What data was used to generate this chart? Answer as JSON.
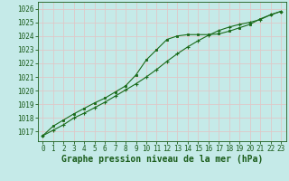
{
  "xlabel": "Graphe pression niveau de la mer (hPa)",
  "xlim": [
    -0.5,
    23.5
  ],
  "ylim": [
    1016.3,
    1026.5
  ],
  "yticks": [
    1017,
    1018,
    1019,
    1020,
    1021,
    1022,
    1023,
    1024,
    1025,
    1026
  ],
  "xticks": [
    0,
    1,
    2,
    3,
    4,
    5,
    6,
    7,
    8,
    9,
    10,
    11,
    12,
    13,
    14,
    15,
    16,
    17,
    18,
    19,
    20,
    21,
    22,
    23
  ],
  "bg_color": "#c5eae8",
  "grid_color": "#dfc8c8",
  "line_color": "#1a6b1a",
  "line1_x": [
    0,
    1,
    2,
    3,
    4,
    5,
    6,
    7,
    8,
    9,
    10,
    11,
    12,
    13,
    14,
    15,
    16,
    17,
    18,
    19,
    20,
    21,
    22,
    23
  ],
  "line1_y": [
    1016.7,
    1017.1,
    1017.5,
    1018.0,
    1018.35,
    1018.75,
    1019.15,
    1019.6,
    1020.05,
    1020.5,
    1021.0,
    1021.55,
    1022.15,
    1022.7,
    1023.2,
    1023.65,
    1024.05,
    1024.4,
    1024.65,
    1024.85,
    1025.0,
    1025.2,
    1025.55,
    1025.8
  ],
  "line2_x": [
    0,
    1,
    2,
    3,
    4,
    5,
    6,
    7,
    8,
    9,
    10,
    11,
    12,
    13,
    14,
    15,
    16,
    17,
    18,
    19,
    20,
    21,
    22,
    23
  ],
  "line2_y": [
    1016.7,
    1017.4,
    1017.85,
    1018.3,
    1018.7,
    1019.1,
    1019.45,
    1019.9,
    1020.35,
    1021.15,
    1022.25,
    1023.0,
    1023.75,
    1024.0,
    1024.1,
    1024.1,
    1024.1,
    1024.15,
    1024.35,
    1024.6,
    1024.85,
    1025.25,
    1025.55,
    1025.8
  ],
  "font_color": "#1a5c1a",
  "xlabel_fontsize": 7.0,
  "tick_fontsize": 5.5
}
